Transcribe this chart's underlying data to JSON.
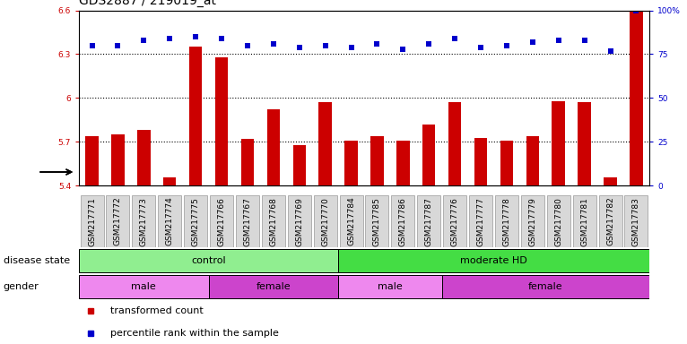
{
  "title": "GDS2887 / 219019_at",
  "samples": [
    "GSM217771",
    "GSM217772",
    "GSM217773",
    "GSM217774",
    "GSM217775",
    "GSM217766",
    "GSM217767",
    "GSM217768",
    "GSM217769",
    "GSM217770",
    "GSM217784",
    "GSM217785",
    "GSM217786",
    "GSM217787",
    "GSM217776",
    "GSM217777",
    "GSM217778",
    "GSM217779",
    "GSM217780",
    "GSM217781",
    "GSM217782",
    "GSM217783"
  ],
  "bar_values": [
    5.74,
    5.75,
    5.78,
    5.46,
    6.35,
    6.28,
    5.72,
    5.92,
    5.68,
    5.97,
    5.71,
    5.74,
    5.71,
    5.82,
    5.97,
    5.73,
    5.71,
    5.74,
    5.98,
    5.97,
    5.46,
    6.6
  ],
  "percentile_values": [
    80,
    80,
    83,
    84,
    85,
    84,
    80,
    81,
    79,
    80,
    79,
    81,
    78,
    81,
    84,
    79,
    80,
    82,
    83,
    83,
    77,
    100
  ],
  "bar_min": 5.4,
  "ymin": 5.4,
  "ymax": 6.6,
  "yticks": [
    5.4,
    5.7,
    6.0,
    6.3,
    6.6
  ],
  "ytick_labels": [
    "5.4",
    "5.7",
    "6",
    "6.3",
    "6.6"
  ],
  "right_yticks": [
    0,
    25,
    50,
    75,
    100
  ],
  "right_ytick_labels": [
    "0",
    "25",
    "50",
    "75",
    "100%"
  ],
  "bar_color": "#cc0000",
  "dot_color": "#0000cc",
  "grid_color": "#000000",
  "disease_state_groups": [
    {
      "label": "control",
      "start": 0,
      "end": 10,
      "color": "#90ee90"
    },
    {
      "label": "moderate HD",
      "start": 10,
      "end": 22,
      "color": "#44dd44"
    }
  ],
  "gender_groups": [
    {
      "label": "male",
      "start": 0,
      "end": 5,
      "color": "#ee88ee"
    },
    {
      "label": "female",
      "start": 5,
      "end": 10,
      "color": "#cc44cc"
    },
    {
      "label": "male",
      "start": 10,
      "end": 14,
      "color": "#ee88ee"
    },
    {
      "label": "female",
      "start": 14,
      "end": 22,
      "color": "#cc44cc"
    }
  ],
  "disease_label": "disease state",
  "gender_label": "gender",
  "legend_items": [
    {
      "label": "transformed count",
      "color": "#cc0000",
      "marker": "s"
    },
    {
      "label": "percentile rank within the sample",
      "color": "#0000cc",
      "marker": "s"
    }
  ],
  "title_fontsize": 10,
  "tick_fontsize": 6.5,
  "label_fontsize": 8,
  "bar_width": 0.5
}
